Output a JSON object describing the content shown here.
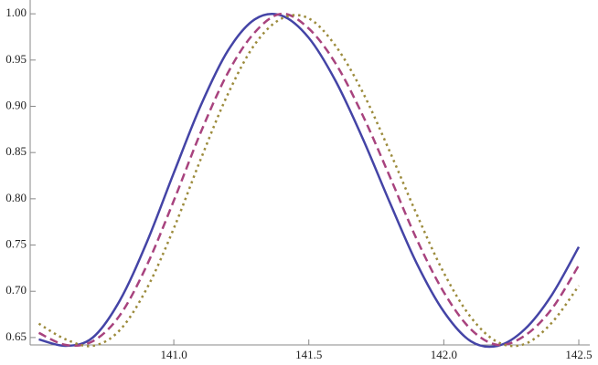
{
  "chart_data": {
    "type": "line",
    "x": [
      140.5,
      140.6,
      140.7,
      140.8,
      140.9,
      141.0,
      141.1,
      141.2,
      141.3,
      141.4,
      141.5,
      141.6,
      141.7,
      141.8,
      141.9,
      142.0,
      142.1,
      142.2,
      142.3,
      142.4,
      142.5
    ],
    "series": [
      {
        "color": "#4444a6",
        "dash": "solid",
        "values": [
          0.648,
          0.641,
          0.65,
          0.69,
          0.753,
          0.828,
          0.901,
          0.96,
          0.994,
          0.998,
          0.974,
          0.927,
          0.865,
          0.796,
          0.73,
          0.678,
          0.646,
          0.641,
          0.659,
          0.696,
          0.748
        ]
      },
      {
        "color": "#a8437e",
        "dash": "dashed",
        "values": [
          0.655,
          0.642,
          0.646,
          0.674,
          0.728,
          0.798,
          0.872,
          0.936,
          0.98,
          1.0,
          0.984,
          0.946,
          0.89,
          0.824,
          0.756,
          0.699,
          0.659,
          0.642,
          0.652,
          0.681,
          0.728
        ]
      },
      {
        "color": "#9c8b3c",
        "dash": "dotted",
        "values": [
          0.665,
          0.648,
          0.641,
          0.658,
          0.703,
          0.768,
          0.843,
          0.913,
          0.967,
          0.995,
          0.995,
          0.965,
          0.915,
          0.851,
          0.783,
          0.72,
          0.672,
          0.645,
          0.643,
          0.666,
          0.706
        ]
      }
    ],
    "xlim": [
      140.468,
      142.5
    ],
    "ylim": [
      0.642,
      1.01
    ],
    "xticks": [
      {
        "value": 141.0,
        "label": "141.0"
      },
      {
        "value": 141.5,
        "label": "141.5"
      },
      {
        "value": 142.0,
        "label": "142.0"
      },
      {
        "value": 142.5,
        "label": "142.5"
      }
    ],
    "yticks": [
      {
        "value": 0.65,
        "label": "0.65"
      },
      {
        "value": 0.7,
        "label": "0.70"
      },
      {
        "value": 0.75,
        "label": "0.75"
      },
      {
        "value": 0.8,
        "label": "0.80"
      },
      {
        "value": 0.85,
        "label": "0.85"
      },
      {
        "value": 0.9,
        "label": "0.90"
      },
      {
        "value": 0.95,
        "label": "0.95"
      },
      {
        "value": 1.0,
        "label": "1.00"
      }
    ]
  }
}
